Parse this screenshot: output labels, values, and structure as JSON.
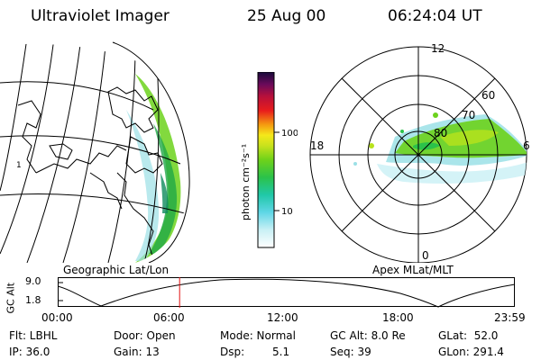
{
  "header": {
    "instrument": "Ultraviolet Imager",
    "date": "25 Aug 00",
    "time": "06:24:04 UT"
  },
  "colorbar": {
    "unit_label": "photon cm⁻²s⁻¹",
    "ticks": [
      {
        "label": "100",
        "value": 100
      },
      {
        "label": "10",
        "value": 10
      }
    ],
    "scale": "log"
  },
  "polar_plot": {
    "mlt_labels": [
      "12",
      "18",
      "6",
      "0"
    ],
    "lat_labels": [
      "60",
      "70",
      "80"
    ]
  },
  "left_map": {
    "edge_label": "1"
  },
  "panel_labels": {
    "left": "Geographic Lat/Lon",
    "right": "Apex MLat/MLT"
  },
  "altitude_plot": {
    "ylabel": "GC Alt",
    "yticks": [
      "9.0",
      "1.8"
    ],
    "xticks": [
      "00:00",
      "06:00",
      "12:00",
      "18:00",
      "23:59"
    ],
    "current_time_hours": 6.4
  },
  "status": {
    "flt": "Flt: LBHL",
    "ip": "IP: 36.0",
    "door": "Door: Open",
    "gain": "Gain: 13",
    "mode": "Mode: Normal",
    "dsp_label": "Dsp:",
    "dsp_value": "5.1",
    "gcalt": "GC Alt: 8.0 Re",
    "seq": "Seq: 39",
    "glat": "GLat:  52.0",
    "glon": "GLon: 291.4"
  }
}
